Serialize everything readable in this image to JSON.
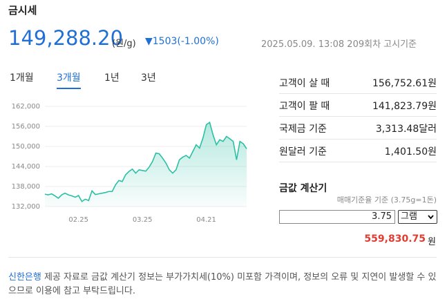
{
  "header": {
    "title": "금시세",
    "price": "149,288.20",
    "unit": "(원/g)",
    "change": "▼1503(-1.00%)",
    "date": "2025.05.09. 13:08 209회차 고시기준"
  },
  "tabs": [
    "1개월",
    "3개월",
    "1년",
    "3년"
  ],
  "chart_data": {
    "type": "line",
    "color": "#2bbfa4",
    "categories": [
      null,
      null,
      null,
      null,
      null,
      null,
      null,
      null,
      null,
      null,
      "02.25",
      null,
      null,
      null,
      null,
      null,
      null,
      null,
      null,
      null,
      null,
      null,
      null,
      null,
      null,
      null,
      null,
      null,
      null,
      "03.25",
      null,
      null,
      null,
      null,
      null,
      null,
      null,
      null,
      null,
      null,
      null,
      null,
      null,
      null,
      null,
      null,
      null,
      null,
      "04.21",
      null,
      null,
      null,
      null,
      null,
      null,
      null,
      null,
      null,
      null,
      null,
      null
    ],
    "values": [
      135700,
      135500,
      135800,
      135200,
      134500,
      135500,
      136000,
      135500,
      135200,
      134800,
      135300,
      133500,
      134200,
      133800,
      136700,
      135600,
      135800,
      136000,
      136200,
      136500,
      136500,
      138500,
      139800,
      139500,
      141500,
      142500,
      143200,
      142000,
      143000,
      142800,
      142600,
      143800,
      145500,
      148000,
      147800,
      146500,
      145000,
      143000,
      142000,
      143000,
      146000,
      146800,
      147300,
      146500,
      148500,
      150500,
      149500,
      152500,
      156500,
      157200,
      153500,
      150500,
      152000,
      151500,
      153000,
      152300,
      151500,
      146000,
      151500,
      150800,
      149300
    ],
    "ylim": [
      132000,
      162000
    ],
    "yticks": [
      {
        "value": 132000,
        "label": "132,000"
      },
      {
        "value": 138000,
        "label": "138,000"
      },
      {
        "value": 144000,
        "label": "144,000"
      },
      {
        "value": 150000,
        "label": "150,000"
      },
      {
        "value": 156000,
        "label": "156,000"
      },
      {
        "value": 162000,
        "label": "162,000"
      }
    ],
    "grid": true
  },
  "prices": [
    {
      "label": "고객이 살 때",
      "value": "156,752.61원"
    },
    {
      "label": "고객이 팔 때",
      "value": "141,823.79원"
    },
    {
      "label": "국제금 기준",
      "value": "3,313.48달러"
    },
    {
      "label": "원달러 기준",
      "value": "1,401.50원"
    }
  ],
  "calculator": {
    "title": "금값 계산기",
    "note": "매매기준율 기준 (3.75g=1돈)",
    "amount": "3.75",
    "unit_select": "그램",
    "result": "559,830.75",
    "result_unit": "원"
  },
  "footer": {
    "bank": "신한은행",
    "text": " 제공 자료로 금값 계산기 정보는 부가가치세(10%) 미포함 가격이며, 정보의 오류 및 지연이 발생할 수 있으므로 이용에 참고 부탁드립니다."
  }
}
